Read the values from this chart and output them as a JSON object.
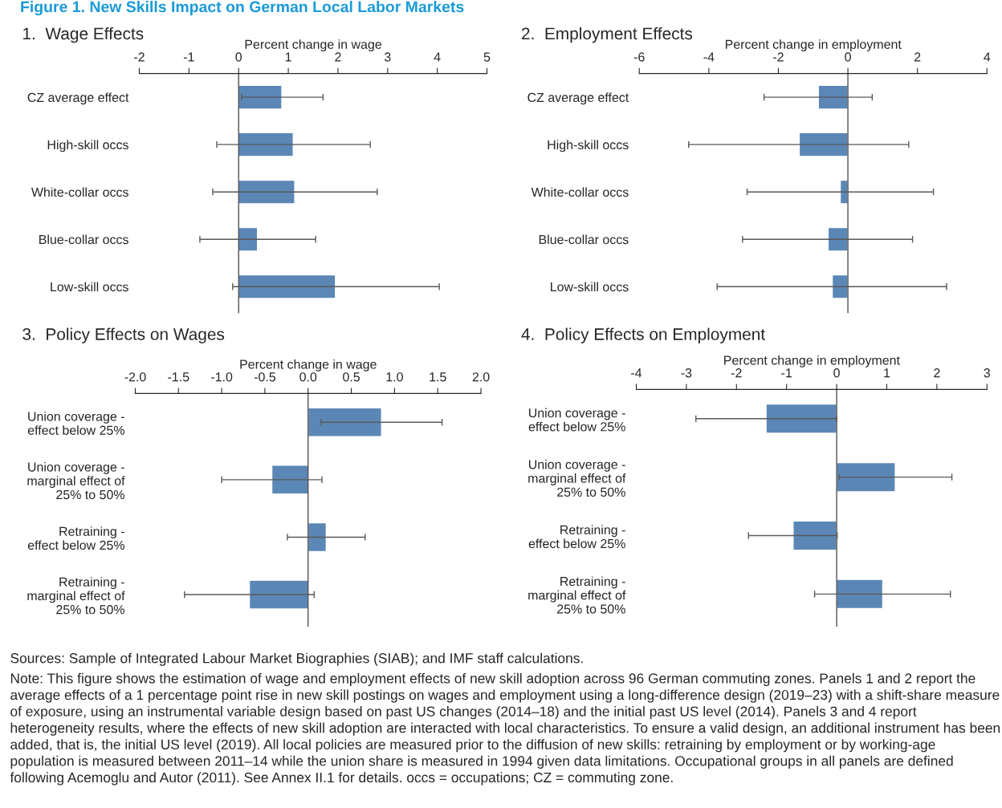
{
  "chart_data": [
    {
      "type": "bar",
      "orientation": "horizontal",
      "title": "1.  Wage Effects",
      "xlabel": "Percent change in wage",
      "color": "#5b87b6",
      "annotations": [
        "Figure 1. New Skills Impact on German Local Labor Markets",
        "Sources: Sample of Integrated Labour Market Biographies (SIAB); and IMF staff calculations.",
        "Note: This figure shows the estimation of wage and employment effects of new skill adoption across 96 German commuting zones. Panels 1 and 2 report the average effects of a 1 percentage point rise in new skill postings on wages and employment using a long-difference design (2019–23) with a shift-share measure of exposure, using an instrumental variable design based on past US changes (2014–18) and the initial past US level (2014). Panels 3 and 4 report heterogeneity results, where the effects of new skill adoption are interacted with local characteristics. To ensure a valid design, an additional instrument has been added, that is, the initial US level (2019). All local policies are measured prior to the diffusion of new skills: retraining by employment or by working-age population is measured between 2011–14 while the union share is measured in 1994 given data limitations. Occupational groups in all panels are defined following Acemoglu and Autor (2011). See Annex II.1 for details. occs = occupations; CZ = commuting zone."
      ],
      "categories": [
        "CZ average effect",
        "High-skill occs",
        "White-collar occs",
        "Blue-collar occs",
        "Low-skill occs"
      ],
      "values": [
        0.87,
        1.1,
        1.13,
        0.38,
        1.95
      ],
      "errors": [
        [
          0.06,
          1.7
        ],
        [
          -0.44,
          2.65
        ],
        [
          -0.52,
          2.79
        ],
        [
          -0.78,
          1.55
        ],
        [
          -0.12,
          4.04
        ]
      ],
      "xlim": [
        -2,
        5
      ],
      "xticks": [
        -2,
        -1,
        0,
        1,
        2,
        3,
        4,
        5
      ]
    },
    {
      "type": "bar",
      "orientation": "horizontal",
      "title": "2.  Employment Effects",
      "xlabel": "Percent change in employment",
      "color": "#5b87b6",
      "categories": [
        "CZ average effect",
        "High-skill occs",
        "White-collar occs",
        "Blue-collar occs",
        "Low-skill occs"
      ],
      "values": [
        -0.85,
        -1.4,
        -0.22,
        -0.57,
        -0.45
      ],
      "errors": [
        [
          -2.41,
          0.7
        ],
        [
          -4.58,
          1.75
        ],
        [
          -2.9,
          2.46
        ],
        [
          -3.03,
          1.86
        ],
        [
          -3.76,
          2.84
        ]
      ],
      "xlim": [
        -6,
        4
      ],
      "xticks": [
        -6,
        -4,
        -2,
        0,
        2,
        4
      ]
    },
    {
      "type": "bar",
      "orientation": "horizontal",
      "title": "3.  Policy Effects on Wages",
      "xlabel": "Percent change in wage",
      "color": "#5b87b6",
      "categories": [
        "Union coverage -\neffect below 25%",
        "Union coverage -\nmarginal effect of\n25% to 50%",
        "Retraining -\neffect below 25%",
        "Retraining -\nmarginal effect of\n25% to 50%"
      ],
      "values": [
        0.85,
        -0.42,
        0.21,
        -0.68
      ],
      "errors": [
        [
          0.15,
          1.55
        ],
        [
          -1.0,
          0.16
        ],
        [
          -0.24,
          0.66
        ],
        [
          -1.43,
          0.07
        ]
      ],
      "xlim": [
        -2.0,
        2.0
      ],
      "xticks": [
        {
          "value": -2,
          "label": "-2.0"
        },
        -1.5,
        {
          "value": -1,
          "label": "-1.0"
        },
        -0.5,
        {
          "value": 0,
          "label": "0.0"
        },
        0.5,
        {
          "value": 1,
          "label": "1.0"
        },
        1.5,
        {
          "value": 2,
          "label": "2.0"
        }
      ]
    },
    {
      "type": "bar",
      "orientation": "horizontal",
      "title": "4.  Policy Effects on Employment",
      "xlabel": "Percent change in employment",
      "color": "#5b87b6",
      "categories": [
        "Union coverage -\neffect below 25%",
        "Union coverage -\nmarginal effect of\n25% to 50%",
        "Retraining -\neffect below 25%",
        "Retraining -\nmarginal effect of\n25% to 50%"
      ],
      "values": [
        -1.41,
        1.17,
        -0.87,
        0.92
      ],
      "errors": [
        [
          -2.81,
          0.0
        ],
        [
          0.05,
          2.3
        ],
        [
          -1.76,
          0.01
        ],
        [
          -0.44,
          2.27
        ]
      ],
      "xlim": [
        -4,
        3
      ],
      "xticks": [
        -4,
        -3,
        -2,
        -1,
        0,
        1,
        2,
        3
      ]
    }
  ]
}
